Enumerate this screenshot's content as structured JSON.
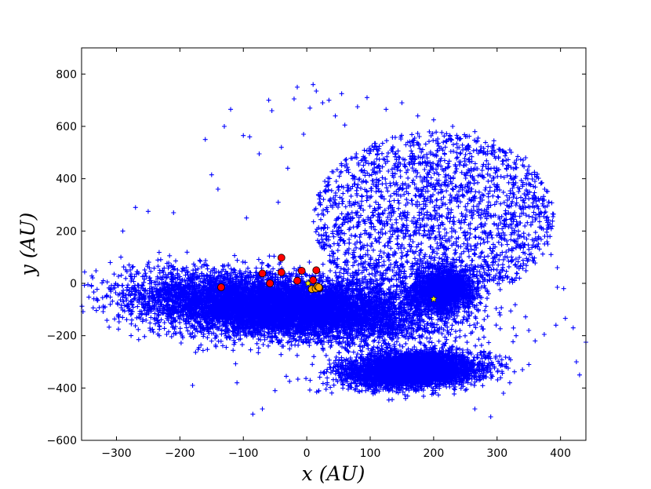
{
  "chart_data": {
    "type": "scatter",
    "title": "",
    "xlabel": "x (AU)",
    "ylabel": "y (AU)",
    "xlim": [
      -355,
      440
    ],
    "ylim": [
      -600,
      900
    ],
    "xticks": [
      -300,
      -200,
      -100,
      0,
      100,
      200,
      300,
      400
    ],
    "yticks": [
      -600,
      -400,
      -200,
      0,
      200,
      400,
      600,
      800
    ],
    "xtick_labels": [
      "−300",
      "−200",
      "−100",
      "0",
      "100",
      "200",
      "300",
      "400"
    ],
    "ytick_labels": [
      "−600",
      "−400",
      "−200",
      "0",
      "200",
      "400",
      "600",
      "800"
    ],
    "grid": false,
    "colors": {
      "particles": "#0000ff",
      "red_markers": "#ff0000",
      "orange_markers": "#ffa500",
      "stars": "#ffff00"
    },
    "series": [
      {
        "marker": "plus",
        "color": "#0000ff",
        "points": [
          [
            -345,
            -5
          ],
          [
            -290,
            200
          ],
          [
            -270,
            290
          ],
          [
            -265,
            -215
          ],
          [
            -250,
            275
          ],
          [
            -210,
            270
          ],
          [
            -180,
            -390
          ],
          [
            -170,
            -245
          ],
          [
            -160,
            550
          ],
          [
            -150,
            415
          ],
          [
            -140,
            360
          ],
          [
            -130,
            600
          ],
          [
            -120,
            665
          ],
          [
            -110,
            -380
          ],
          [
            -100,
            565
          ],
          [
            -95,
            250
          ],
          [
            -90,
            560
          ],
          [
            -85,
            -500
          ],
          [
            -75,
            495
          ],
          [
            -70,
            -480
          ],
          [
            -60,
            700
          ],
          [
            -55,
            660
          ],
          [
            -50,
            -410
          ],
          [
            -45,
            310
          ],
          [
            -40,
            520
          ],
          [
            -30,
            440
          ],
          [
            -20,
            705
          ],
          [
            -15,
            750
          ],
          [
            -5,
            570
          ],
          [
            5,
            670
          ],
          [
            10,
            760
          ],
          [
            15,
            735
          ],
          [
            25,
            690
          ],
          [
            35,
            700
          ],
          [
            45,
            640
          ],
          [
            55,
            725
          ],
          [
            60,
            605
          ],
          [
            80,
            675
          ],
          [
            95,
            710
          ],
          [
            125,
            665
          ],
          [
            150,
            690
          ],
          [
            175,
            640
          ],
          [
            200,
            625
          ],
          [
            230,
            600
          ],
          [
            265,
            580
          ],
          [
            295,
            545
          ],
          [
            320,
            510
          ],
          [
            345,
            480
          ],
          [
            360,
            330
          ],
          [
            370,
            210
          ],
          [
            375,
            180
          ],
          [
            380,
            150
          ],
          [
            385,
            110
          ],
          [
            395,
            60
          ],
          [
            405,
            -20
          ],
          [
            395,
            -15
          ],
          [
            420,
            -170
          ],
          [
            425,
            -300
          ],
          [
            430,
            -350
          ],
          [
            440,
            -225
          ],
          [
            320,
            -380
          ],
          [
            310,
            -420
          ],
          [
            290,
            -510
          ],
          [
            265,
            -480
          ],
          [
            330,
            -200
          ],
          [
            350,
            -180
          ],
          [
            360,
            -220
          ],
          [
            340,
            -330
          ]
        ]
      },
      {
        "marker": "circle",
        "color": "#ff0000",
        "points": [
          [
            -135,
            -15
          ],
          [
            -70,
            38
          ],
          [
            -58,
            0
          ],
          [
            -40,
            98
          ],
          [
            -40,
            42
          ],
          [
            -15,
            10
          ],
          [
            -8,
            48
          ],
          [
            10,
            12
          ],
          [
            15,
            50
          ],
          [
            20,
            -18
          ]
        ]
      },
      {
        "marker": "circle",
        "color": "#ffa500",
        "points": [
          [
            8,
            -22
          ],
          [
            14,
            -20
          ],
          [
            17,
            -12
          ],
          [
            19,
            -15
          ]
        ]
      },
      {
        "marker": "star",
        "color": "#ffff00",
        "points": [
          [
            2,
            0
          ],
          [
            200,
            -60
          ]
        ]
      }
    ],
    "regions": [
      {
        "color": "#0000ff",
        "kind": "dense-cloud",
        "center": [
          -40,
          -90
        ],
        "rx": 250,
        "ry": 125,
        "rotation": -12,
        "count": 9000
      },
      {
        "color": "#0000ff",
        "kind": "dense-cloud",
        "center": [
          165,
          -330
        ],
        "rx": 115,
        "ry": 70,
        "rotation": 8,
        "count": 4500
      },
      {
        "color": "#0000ff",
        "kind": "dense-cloud",
        "center": [
          215,
          -25
        ],
        "rx": 50,
        "ry": 90,
        "rotation": 0,
        "count": 1800
      },
      {
        "color": "#0000ff",
        "kind": "sparse-halo",
        "center": [
          200,
          250
        ],
        "rx": 190,
        "ry": 330,
        "rotation": 0,
        "count": 2200
      }
    ]
  }
}
